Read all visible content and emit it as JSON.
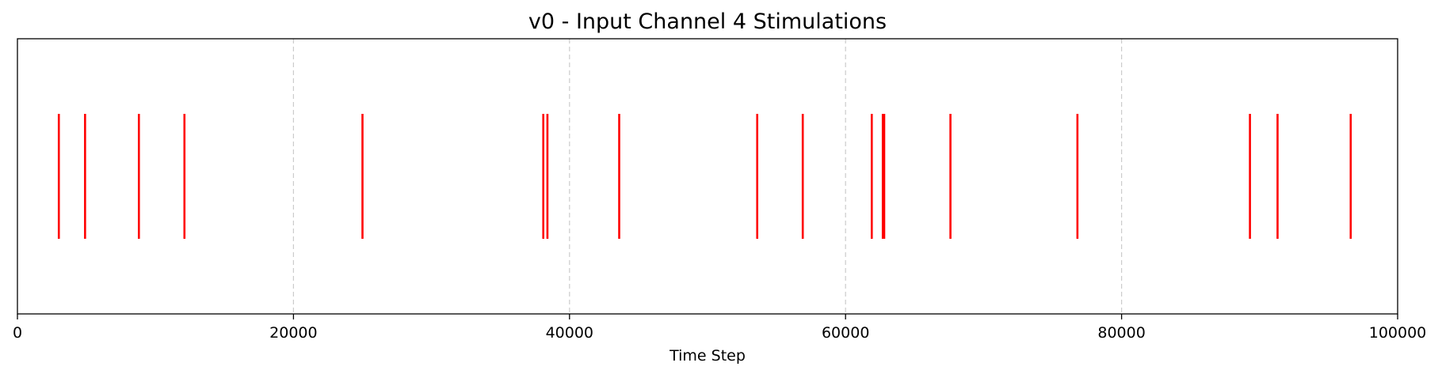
{
  "chart_data": {
    "type": "eventplot",
    "title": "v0 - Input Channel 4 Stimulations",
    "xlabel": "Time Step",
    "ylabel": "",
    "xlim": [
      0,
      100000
    ],
    "x_ticks": [
      0,
      20000,
      40000,
      60000,
      80000,
      100000
    ],
    "x_tick_labels": [
      "0",
      "20000",
      "40000",
      "60000",
      "80000",
      "100000"
    ],
    "grid": "x-axis, dashed",
    "event_color": "#ff0000",
    "events": [
      3000,
      4900,
      8800,
      12100,
      25000,
      38100,
      38400,
      43600,
      53600,
      56900,
      61900,
      62700,
      62800,
      67600,
      76800,
      89300,
      91300,
      96600
    ]
  }
}
